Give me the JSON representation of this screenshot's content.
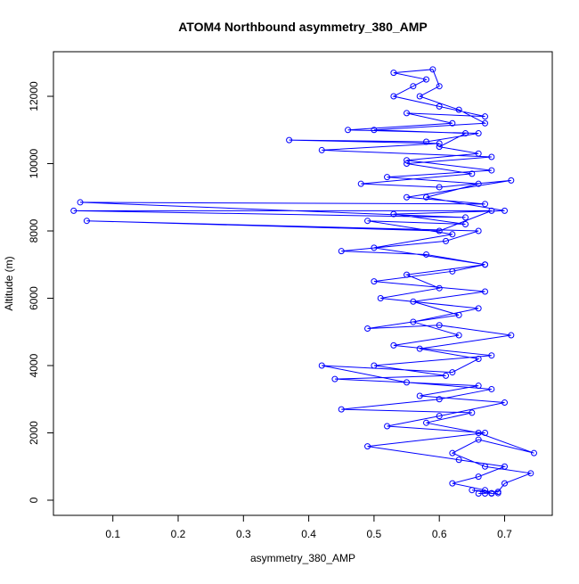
{
  "chart_data": {
    "type": "line",
    "title": "ATOM4 Northbound asymmetry_380_AMP",
    "xlabel": "asymmetry_380_AMP",
    "ylabel": "Altitude (m)",
    "color": "#0000ff",
    "x": [
      0.67,
      0.66,
      0.68,
      0.65,
      0.69,
      0.7,
      0.74,
      0.67,
      0.62,
      0.66,
      0.745,
      0.66,
      0.58,
      0.65,
      0.45,
      0.6,
      0.68,
      0.55,
      0.42,
      0.62,
      0.66,
      0.57,
      0.71,
      0.6,
      0.49,
      0.63,
      0.56,
      0.67,
      0.5,
      0.62,
      0.67,
      0.58,
      0.45,
      0.61,
      0.66,
      0.06,
      0.6,
      0.68,
      0.04,
      0.64,
      0.05,
      0.67,
      0.55,
      0.71,
      0.6,
      0.48,
      0.65,
      0.55,
      0.68,
      0.42,
      0.6,
      0.37,
      0.58,
      0.66,
      0.46,
      0.62,
      0.55,
      0.67,
      0.6,
      0.53,
      0.56,
      0.58,
      0.53,
      0.59,
      0.6,
      0.57,
      0.63,
      0.67,
      0.5,
      0.64,
      0.6,
      0.66,
      0.55,
      0.68,
      0.52,
      0.66,
      0.58,
      0.7,
      0.53,
      0.64,
      0.49,
      0.62,
      0.5,
      0.67,
      0.55,
      0.6,
      0.51,
      0.66,
      0.56,
      0.63,
      0.53,
      0.68,
      0.5,
      0.61,
      0.44,
      0.66,
      0.57,
      0.7,
      0.6,
      0.52,
      0.67,
      0.49,
      0.63,
      0.7,
      0.66,
      0.62,
      0.67,
      0.68,
      0.69
    ],
    "values": [
      200,
      200,
      210,
      300,
      250,
      500,
      800,
      1000,
      1400,
      1800,
      1400,
      2000,
      2300,
      2600,
      2700,
      3000,
      3300,
      3500,
      4000,
      3800,
      4200,
      4500,
      4900,
      5200,
      5100,
      5500,
      5900,
      6200,
      6500,
      6800,
      7000,
      7300,
      7400,
      7700,
      8000,
      8300,
      8000,
      8600,
      8600,
      8400,
      8850,
      8800,
      9000,
      9500,
      9300,
      9400,
      9700,
      10000,
      10200,
      10400,
      10600,
      10700,
      10650,
      10900,
      11000,
      11200,
      11500,
      11400,
      11700,
      12000,
      12300,
      12500,
      12700,
      12800,
      12300,
      12000,
      11600,
      11200,
      11000,
      10900,
      10500,
      10300,
      10100,
      9800,
      9600,
      9400,
      9000,
      8600,
      8500,
      8200,
      8300,
      7900,
      7500,
      7000,
      6700,
      6300,
      6000,
      5700,
      5300,
      4900,
      4600,
      4300,
      4000,
      3700,
      3600,
      3400,
      3100,
      2900,
      2500,
      2200,
      2000,
      1600,
      1200,
      1000,
      700,
      500,
      300,
      200,
      210
    ],
    "xlim": [
      0.009,
      0.773
    ],
    "ylim": [
      -450,
      13325
    ],
    "xticks": [
      0.1,
      0.2,
      0.3,
      0.4,
      0.5,
      0.6,
      0.7
    ],
    "yticks": [
      0,
      2000,
      4000,
      6000,
      8000,
      10000,
      12000
    ]
  }
}
